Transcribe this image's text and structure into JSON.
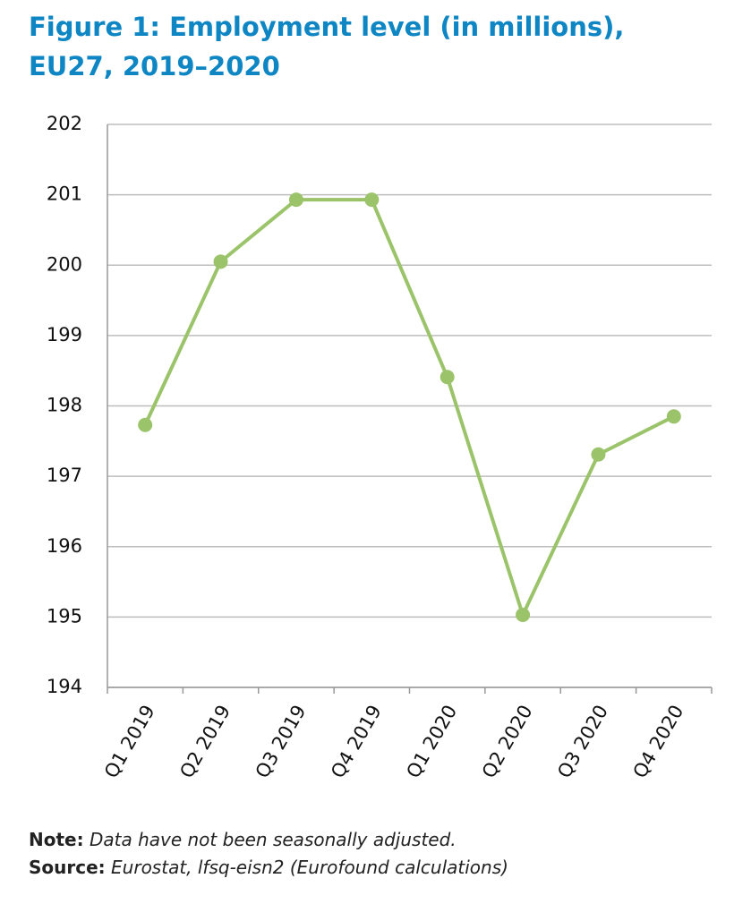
{
  "chart_data": {
    "type": "line",
    "title": "Figure 1: Employment level (in millions), EU27, 2019–2020",
    "categories": [
      "Q1 2019",
      "Q2 2019",
      "Q3 2019",
      "Q4 2019",
      "Q1 2020",
      "Q2 2020",
      "Q3 2020",
      "Q4 2020"
    ],
    "series": [
      {
        "name": "Employment level",
        "color": "#9bc46a",
        "values": [
          197.73,
          200.05,
          200.93,
          200.93,
          198.41,
          195.03,
          197.31,
          197.85
        ]
      }
    ],
    "ylim": [
      194,
      202
    ],
    "yticks": [
      194,
      195,
      196,
      197,
      198,
      199,
      200,
      201,
      202
    ],
    "grid": true,
    "note": {
      "label": "Note:",
      "text": "Data have not been seasonally adjusted."
    },
    "source": {
      "label": "Source:",
      "text": "Eurostat, lfsq-eisn2 (Eurofound calculations)"
    }
  }
}
